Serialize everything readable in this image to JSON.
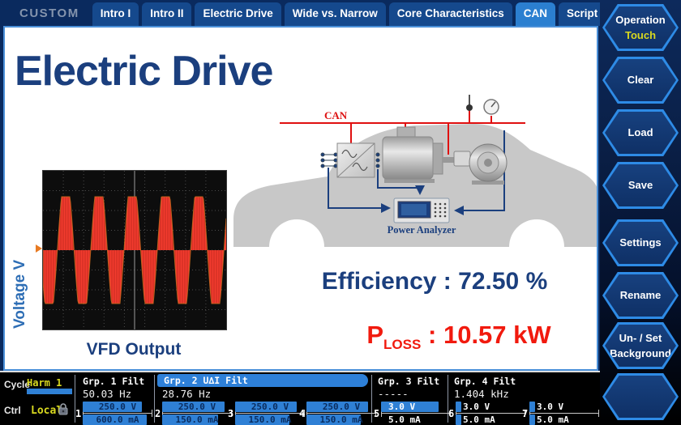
{
  "header": {
    "mode_label": "CUSTOM",
    "tabs": [
      {
        "label": "Intro I",
        "active": false
      },
      {
        "label": "Intro II",
        "active": false
      },
      {
        "label": "Electric Drive",
        "active": false
      },
      {
        "label": "Wide vs. Narrow",
        "active": false
      },
      {
        "label": "Core Characteristics",
        "active": false
      },
      {
        "label": "CAN",
        "active": true
      },
      {
        "label": "Script Editor",
        "active": false
      }
    ]
  },
  "sidebar": {
    "buttons": [
      {
        "line1": "Operation",
        "line2": "Touch"
      },
      {
        "line1": "Clear",
        "line2": ""
      },
      {
        "line1": "Load",
        "line2": ""
      },
      {
        "line1": "Save",
        "line2": ""
      },
      {
        "line1": "Settings",
        "line2": ""
      },
      {
        "line1": "Rename",
        "line2": ""
      },
      {
        "line1": "Un- / Set",
        "line2": "Background"
      },
      {
        "line1": "",
        "line2": ""
      }
    ]
  },
  "main": {
    "title": "Electric Drive",
    "scope": {
      "ylabel": "Voltage V",
      "caption": "VFD Output"
    },
    "diagram": {
      "bus_label": "CAN",
      "device_label": "Power Analyzer"
    },
    "efficiency_label": "Efficiency :",
    "efficiency_value": "72.50 %",
    "ploss_label": "P",
    "ploss_sub": "LOSS",
    "ploss_value": ": 10.57 kW"
  },
  "statusbar": {
    "cycle_label": "Cycle",
    "cycle_value": "Harm 1",
    "ctrl_label": "Ctrl",
    "ctrl_value": "Local",
    "groups": [
      {
        "name": "Grp. 1 Filt",
        "freq": "50.03 Hz"
      },
      {
        "name": "Grp. 2 U∆I Filt",
        "freq": "28.76 Hz"
      },
      {
        "name": "Grp. 3 Filt",
        "freq": "-----"
      },
      {
        "name": "Grp. 4 Filt",
        "freq": "1.404 kHz"
      }
    ],
    "channels": [
      {
        "num": "1",
        "voltage": "250.0 V",
        "current": "600.0 mA",
        "v_fill": 85,
        "i_fill": 92,
        "dark_text": true
      },
      {
        "num": "2",
        "voltage": "250.0 V",
        "current": "150.0 mA",
        "v_fill": 90,
        "i_fill": 80,
        "dark_text": true
      },
      {
        "num": "3",
        "voltage": "250.0 V",
        "current": "150.0 mA",
        "v_fill": 88,
        "i_fill": 78,
        "dark_text": true
      },
      {
        "num": "4",
        "voltage": "250.0 V",
        "current": "150.0 mA",
        "v_fill": 88,
        "i_fill": 78,
        "dark_text": true
      },
      {
        "num": "5",
        "voltage": "3.0 V",
        "current": "5.0 mA",
        "v_fill": 82,
        "i_fill": 0,
        "dark_text": false
      },
      {
        "num": "6",
        "voltage": "3.0 V",
        "current": "5.0 mA",
        "v_fill": 8,
        "i_fill": 8,
        "dark_text": false
      },
      {
        "num": "7",
        "voltage": "3.0 V",
        "current": "5.0 mA",
        "v_fill": 8,
        "i_fill": 8,
        "dark_text": false
      }
    ]
  },
  "colors": {
    "accent_blue": "#2b7fd0",
    "bar_blue": "#2f80d5",
    "navy_text": "#1b3f7e",
    "alert_red": "#f11a0e",
    "status_yellow": "#d9d91f"
  }
}
